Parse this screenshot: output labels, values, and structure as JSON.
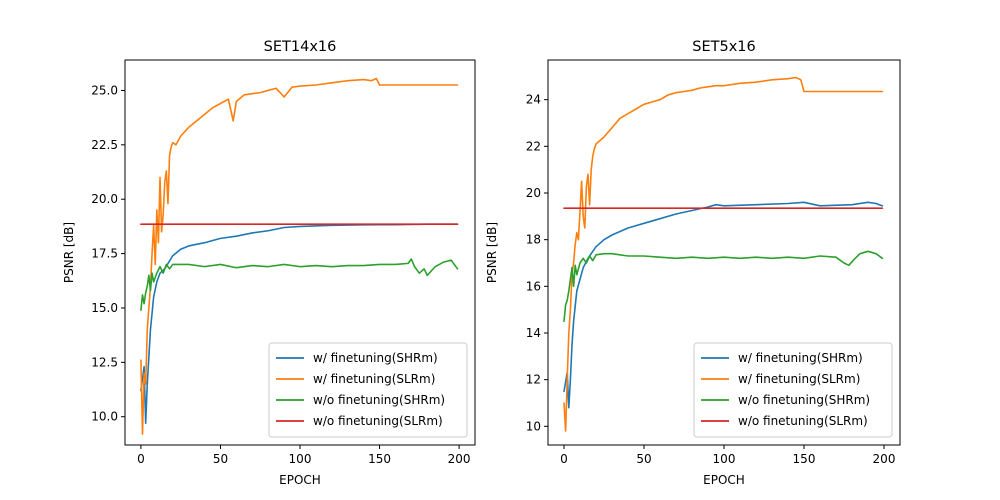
{
  "chart_data": [
    {
      "type": "line",
      "title": "SET14x16",
      "xlabel": "EPOCH",
      "ylabel": "PSNR [dB]",
      "xlim": [
        -10,
        210
      ],
      "ylim": [
        8.7,
        26.4
      ],
      "xticks": [
        0,
        50,
        100,
        150,
        200
      ],
      "xtick_labels": [
        "0",
        "50",
        "100",
        "150",
        "200"
      ],
      "yticks": [
        10.0,
        12.5,
        15.0,
        17.5,
        20.0,
        22.5,
        25.0
      ],
      "ytick_labels": [
        "10.0",
        "12.5",
        "15.0",
        "17.5",
        "20.0",
        "22.5",
        "25.0"
      ],
      "grid": false,
      "legend": "lower right",
      "series": [
        {
          "name": "w/ finetuning(SHRm)",
          "color": "#1f77b4",
          "x": [
            0,
            2,
            3,
            4,
            6,
            8,
            10,
            12,
            15,
            20,
            25,
            30,
            40,
            50,
            60,
            70,
            80,
            90,
            100,
            120,
            140,
            160,
            180,
            199
          ],
          "y": [
            11.2,
            12.3,
            9.7,
            11.5,
            14.0,
            15.5,
            16.2,
            16.6,
            16.8,
            17.4,
            17.7,
            17.85,
            18.0,
            18.2,
            18.3,
            18.45,
            18.55,
            18.7,
            18.75,
            18.8,
            18.82,
            18.83,
            18.85,
            18.85
          ]
        },
        {
          "name": "w/ finetuning(SLRm)",
          "color": "#ff7f0e",
          "x": [
            0,
            1,
            2,
            3,
            4,
            5,
            6,
            7,
            8,
            9,
            10,
            11,
            12,
            13,
            14,
            15,
            16,
            17,
            18,
            19,
            20,
            22,
            25,
            30,
            35,
            40,
            45,
            50,
            55,
            58,
            60,
            65,
            70,
            75,
            80,
            85,
            90,
            95,
            100,
            110,
            120,
            130,
            140,
            145,
            148,
            150,
            160,
            170,
            180,
            190,
            199
          ],
          "y": [
            12.6,
            9.2,
            12.0,
            11.5,
            14.0,
            15.0,
            16.0,
            17.5,
            18.8,
            17.0,
            19.5,
            18.0,
            21.0,
            18.5,
            19.3,
            20.8,
            21.3,
            19.8,
            22.0,
            22.4,
            22.6,
            22.5,
            22.9,
            23.3,
            23.6,
            23.9,
            24.2,
            24.4,
            24.6,
            23.6,
            24.5,
            24.8,
            24.85,
            24.9,
            25.0,
            25.1,
            24.7,
            25.15,
            25.2,
            25.25,
            25.35,
            25.45,
            25.5,
            25.45,
            25.55,
            25.25,
            25.25,
            25.25,
            25.25,
            25.25,
            25.25
          ]
        },
        {
          "name": "w/o finetuning(SHRm)",
          "color": "#2ca02c",
          "x": [
            0,
            1,
            2,
            3,
            4,
            5,
            6,
            7,
            8,
            10,
            12,
            14,
            16,
            18,
            20,
            30,
            40,
            50,
            60,
            70,
            80,
            90,
            100,
            110,
            120,
            130,
            140,
            150,
            160,
            168,
            170,
            172,
            175,
            178,
            180,
            185,
            190,
            195,
            199
          ],
          "y": [
            14.9,
            15.6,
            15.2,
            15.7,
            16.0,
            16.5,
            15.8,
            16.6,
            16.2,
            16.6,
            16.9,
            16.6,
            17.0,
            16.8,
            17.0,
            17.0,
            16.9,
            17.0,
            16.85,
            16.95,
            16.9,
            17.0,
            16.9,
            16.95,
            16.9,
            16.95,
            16.95,
            17.0,
            17.0,
            17.05,
            17.25,
            16.9,
            16.6,
            16.8,
            16.5,
            16.9,
            17.1,
            17.2,
            16.8
          ]
        },
        {
          "name": "w/o finetuning(SLRm)",
          "color": "#d62728",
          "x": [
            0,
            199
          ],
          "y": [
            18.85,
            18.85
          ]
        }
      ]
    },
    {
      "type": "line",
      "title": "SET5x16",
      "xlabel": "EPOCH",
      "ylabel": "PSNR [dB]",
      "xlim": [
        -10,
        210
      ],
      "ylim": [
        9.2,
        25.7
      ],
      "xticks": [
        0,
        50,
        100,
        150,
        200
      ],
      "xtick_labels": [
        "0",
        "50",
        "100",
        "150",
        "200"
      ],
      "yticks": [
        10,
        12,
        14,
        16,
        18,
        20,
        22,
        24
      ],
      "ytick_labels": [
        "10",
        "12",
        "14",
        "16",
        "18",
        "20",
        "22",
        "24"
      ],
      "grid": false,
      "legend": "lower right",
      "series": [
        {
          "name": "w/ finetuning(SHRm)",
          "color": "#1f77b4",
          "x": [
            0,
            2,
            3,
            4,
            5,
            6,
            8,
            10,
            12,
            15,
            20,
            25,
            30,
            40,
            50,
            60,
            70,
            80,
            90,
            95,
            100,
            120,
            140,
            150,
            160,
            180,
            190,
            195,
            199
          ],
          "y": [
            11.5,
            12.3,
            10.8,
            12.0,
            13.5,
            14.5,
            15.8,
            16.3,
            16.8,
            17.2,
            17.7,
            18.0,
            18.2,
            18.5,
            18.7,
            18.9,
            19.1,
            19.25,
            19.4,
            19.5,
            19.45,
            19.5,
            19.55,
            19.6,
            19.45,
            19.5,
            19.6,
            19.55,
            19.45
          ]
        },
        {
          "name": "w/ finetuning(SLRm)",
          "color": "#ff7f0e",
          "x": [
            0,
            1,
            2,
            3,
            4,
            5,
            6,
            7,
            8,
            9,
            10,
            11,
            12,
            13,
            14,
            15,
            16,
            17,
            18,
            19,
            20,
            25,
            30,
            35,
            40,
            45,
            50,
            55,
            60,
            65,
            70,
            75,
            80,
            85,
            90,
            95,
            100,
            110,
            120,
            130,
            140,
            145,
            148,
            150,
            160,
            170,
            180,
            190,
            199
          ],
          "y": [
            11.0,
            9.8,
            12.0,
            14.0,
            15.0,
            16.5,
            17.0,
            17.8,
            18.3,
            18.0,
            19.2,
            20.5,
            19.0,
            18.5,
            20.3,
            20.8,
            19.5,
            21.0,
            21.6,
            21.9,
            22.1,
            22.4,
            22.8,
            23.2,
            23.4,
            23.6,
            23.8,
            23.9,
            24.0,
            24.2,
            24.3,
            24.35,
            24.4,
            24.5,
            24.55,
            24.6,
            24.6,
            24.7,
            24.75,
            24.85,
            24.9,
            24.95,
            24.85,
            24.35,
            24.35,
            24.35,
            24.35,
            24.35,
            24.35
          ]
        },
        {
          "name": "w/o finetuning(SHRm)",
          "color": "#2ca02c",
          "x": [
            0,
            1,
            2,
            3,
            4,
            5,
            6,
            7,
            8,
            10,
            12,
            14,
            16,
            18,
            20,
            25,
            30,
            40,
            50,
            60,
            70,
            80,
            90,
            100,
            110,
            120,
            130,
            140,
            150,
            160,
            170,
            175,
            178,
            182,
            185,
            190,
            195,
            199
          ],
          "y": [
            14.5,
            15.2,
            15.4,
            15.8,
            16.3,
            16.8,
            16.0,
            16.9,
            16.5,
            17.0,
            17.2,
            17.0,
            17.3,
            17.1,
            17.35,
            17.4,
            17.4,
            17.3,
            17.3,
            17.25,
            17.2,
            17.25,
            17.2,
            17.25,
            17.2,
            17.25,
            17.2,
            17.25,
            17.2,
            17.3,
            17.25,
            17.0,
            16.9,
            17.2,
            17.4,
            17.5,
            17.4,
            17.2
          ]
        },
        {
          "name": "w/o finetuning(SLRm)",
          "color": "#d62728",
          "x": [
            0,
            199
          ],
          "y": [
            19.35,
            19.35
          ]
        }
      ]
    }
  ]
}
